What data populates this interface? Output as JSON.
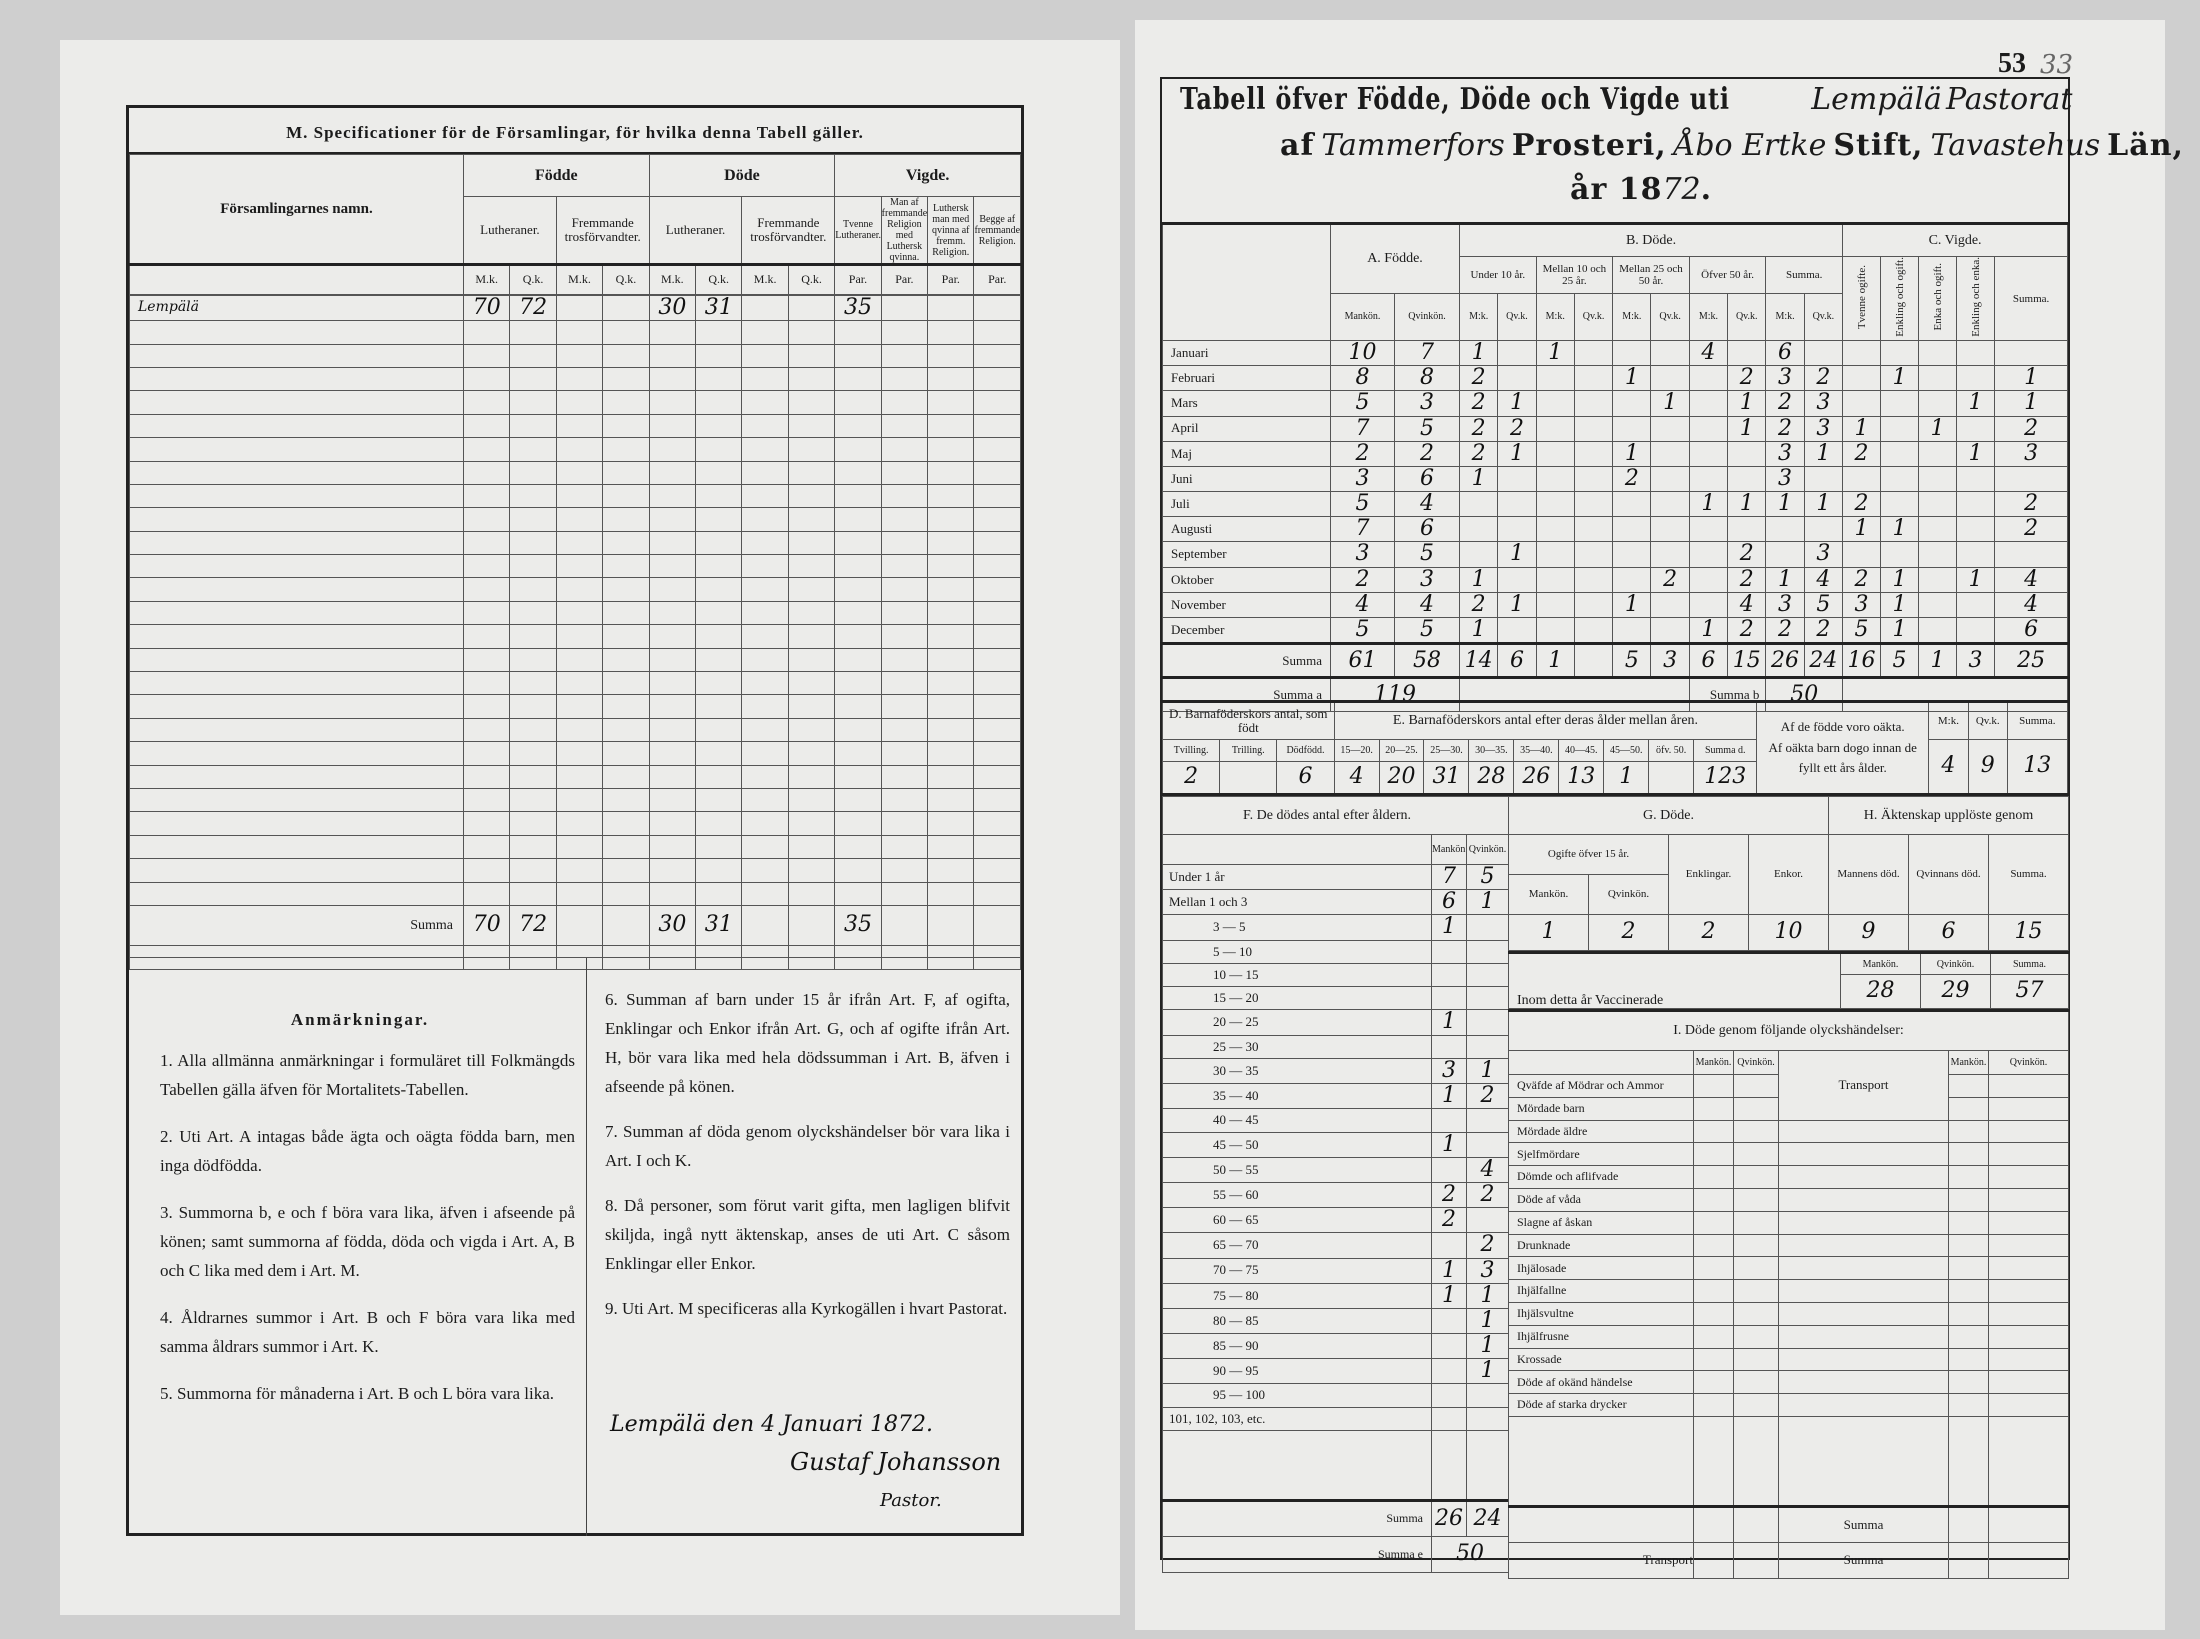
{
  "left_page": {
    "specification": {
      "title": "M. Specificationer för de Församlingar, för hvilka denna Tabell gäller.",
      "name_header": "Församlingarnes namn.",
      "groups": [
        "Födde",
        "Döde",
        "Vigde."
      ],
      "subheaders": [
        "Lutheraner.",
        "Fremmande trosförvandter.",
        "Lutheraner.",
        "Fremmande trosförvandter.",
        "Tvenne Lutheraner.",
        "Man af fremmande Religion med Luthersk qvinna.",
        "Luthersk man med qvinna af fremm. Religion.",
        "Begge af fremmande Religion."
      ],
      "units": [
        "M.k.",
        "Q.k.",
        "M.k.",
        "Q.k.",
        "M.k.",
        "Q.k.",
        "M.k.",
        "Q.k.",
        "Par.",
        "Par.",
        "Par.",
        "Par."
      ],
      "rows": [
        {
          "name": "Lempälä",
          "values": [
            "70",
            "72",
            "",
            "",
            "30",
            "31",
            "",
            "",
            "35",
            "",
            "",
            ""
          ]
        }
      ],
      "summa": {
        "label": "Summa",
        "values": [
          "70",
          "72",
          "",
          "",
          "30",
          "31",
          "",
          "",
          "35",
          "",
          "",
          ""
        ]
      }
    },
    "notes": {
      "heading": "Anmärkningar.",
      "items": [
        "1. Alla allmänna anmärkningar i formuläret till Folkmängds Tabellen gälla äfven för Mortalitets-Tabellen.",
        "2. Uti Art. A intagas både ägta och oägta födda barn, men inga dödfödda.",
        "3. Summorna b, e och f böra vara lika, äfven i afseende på könen; samt summorna af födda, döda och vigda i Art. A, B och C lika med dem i Art. M.",
        "4. Åldrarnes summor i Art. B och F böra vara lika med samma åldrars summor i Art. K.",
        "5. Summorna för månaderna i Art. B och L böra vara lika.",
        "6. Summan af barn under 15 år ifrån Art. F, af ogifta, Enklingar och Enkor ifrån Art. G, och af ogifte ifrån Art. H, bör vara lika med hela dödssumman i Art. B, äfven i afseende på könen.",
        "7. Summan af döda genom olyckshändelser bör vara lika i Art. I och K.",
        "8. Då personer, som förut varit gifta, men lagligen blifvit skiljda, ingå nytt äktenskap, anses de uti Art. C såsom Enklingar eller Enkor.",
        "9. Uti Art. M specificeras alla Kyrkogällen i hvart Pastorat."
      ],
      "signature_place_date": "Lempälä den 4 Januari 1872.",
      "signature_name": "Gustaf Johansson",
      "signature_title": "Pastor."
    }
  },
  "right_page": {
    "page_number": "53",
    "page_number_handwritten": "33",
    "title": {
      "line1_print": "Tabell öfver Födde, Döde och Vigde uti",
      "pastorat": "Lempälä",
      "line1_suffix": "Pastorat",
      "af": "af",
      "prosteri_name": "Tammerfors",
      "prosteri": "Prosteri,",
      "stift_name": "Åbo Ertke",
      "stift": "Stift,",
      "lan_name": "Tavastehus",
      "lan": "Län,",
      "ar": "år 18",
      "year_hw": "72",
      "dot": "."
    },
    "main_table": {
      "section_a": "A. Födde.",
      "section_b": "B. Döde.",
      "section_c": "C. Vigde.",
      "a_cols": [
        "Mankön.",
        "Qvinkön."
      ],
      "b_groups": [
        "Under 10 år.",
        "Mellan 10 och 25 år.",
        "Mellan 25 och 50 år.",
        "Öfver 50 år.",
        "Summa."
      ],
      "mk": "M:k.",
      "qk": "Qv.k.",
      "c_cols": [
        "Tvenne ogifte.",
        "Enkling och ogift.",
        "Enka och ogift.",
        "Enkling och enka.",
        "Summa."
      ],
      "rows": [
        {
          "month": "Januari",
          "values": [
            "10",
            "7",
            "1",
            "",
            "1",
            "",
            "",
            "",
            "4",
            "",
            "6",
            "",
            "",
            "",
            "",
            "",
            ""
          ]
        },
        {
          "month": "Februari",
          "values": [
            "8",
            "8",
            "2",
            "",
            "",
            "",
            "1",
            "",
            "",
            "2",
            "3",
            "2",
            "",
            "1",
            "",
            "",
            "1"
          ]
        },
        {
          "month": "Mars",
          "values": [
            "5",
            "3",
            "2",
            "1",
            "",
            "",
            "",
            "1",
            "",
            "1",
            "2",
            "3",
            "",
            "",
            "",
            "1",
            "1"
          ]
        },
        {
          "month": "April",
          "values": [
            "7",
            "5",
            "2",
            "2",
            "",
            "",
            "",
            "",
            "",
            "1",
            "2",
            "3",
            "1",
            "",
            "1",
            "",
            "2"
          ]
        },
        {
          "month": "Maj",
          "values": [
            "2",
            "2",
            "2",
            "1",
            "",
            "",
            "1",
            "",
            "",
            "",
            "3",
            "1",
            "2",
            "",
            "",
            "1",
            "3"
          ]
        },
        {
          "month": "Juni",
          "values": [
            "3",
            "6",
            "1",
            "",
            "",
            "",
            "2",
            "",
            "",
            "",
            "3",
            "",
            "",
            "",
            "",
            "",
            ""
          ]
        },
        {
          "month": "Juli",
          "values": [
            "5",
            "4",
            "",
            "",
            "",
            "",
            "",
            "",
            "1",
            "1",
            "1",
            "1",
            "2",
            "",
            "",
            "",
            "2"
          ]
        },
        {
          "month": "Augusti",
          "values": [
            "7",
            "6",
            "",
            "",
            "",
            "",
            "",
            "",
            "",
            "",
            "",
            "",
            "1",
            "1",
            "",
            "",
            "2"
          ]
        },
        {
          "month": "September",
          "values": [
            "3",
            "5",
            "",
            "1",
            "",
            "",
            "",
            "",
            "",
            "2",
            "",
            "3",
            "",
            "",
            "",
            "",
            ""
          ]
        },
        {
          "month": "Oktober",
          "values": [
            "2",
            "3",
            "1",
            "",
            "",
            "",
            "",
            "2",
            "",
            "2",
            "1",
            "4",
            "2",
            "1",
            "",
            "1",
            "4"
          ]
        },
        {
          "month": "November",
          "values": [
            "4",
            "4",
            "2",
            "1",
            "",
            "",
            "1",
            "",
            "",
            "4",
            "3",
            "5",
            "3",
            "1",
            "",
            "",
            "4"
          ]
        },
        {
          "month": "December",
          "values": [
            "5",
            "5",
            "1",
            "",
            "",
            "",
            "",
            "",
            "1",
            "2",
            "2",
            "2",
            "5",
            "1",
            "",
            "",
            "6"
          ]
        }
      ],
      "summa": {
        "label": "Summa",
        "values": [
          "61",
          "58",
          "14",
          "6",
          "1",
          "",
          "5",
          "3",
          "6",
          "15",
          "26",
          "24",
          "16",
          "5",
          "1",
          "3",
          "25"
        ]
      },
      "summa_a": {
        "label": "Summa a",
        "value": "119"
      },
      "summa_b": {
        "label": "Summa b",
        "value": "50"
      }
    },
    "section_d": {
      "heading": "D. Barnaföderskors antal, som födt",
      "cols": [
        "Tvilling.",
        "Trilling.",
        "Dödfödd."
      ],
      "values": [
        "2",
        "",
        "6"
      ]
    },
    "section_e": {
      "heading": "E. Barnaföderskors antal efter deras ålder mellan åren.",
      "cols": [
        "15—20.",
        "20—25.",
        "25—30.",
        "30—35.",
        "35—40.",
        "40—45.",
        "45—50.",
        "öfv. 50.",
        "Summa d."
      ],
      "values": [
        "4",
        "20",
        "31",
        "28",
        "26",
        "13",
        "1",
        "",
        "123"
      ]
    },
    "illegitimate": {
      "cols": [
        "M:k.",
        "Qv.k.",
        "Summa."
      ],
      "row1_label": "Af de födde voro oäkta.",
      "row1_values": [
        "4",
        "9",
        "13"
      ],
      "row2_label": "Af oäkta barn dogo innan de fyllt ett års ålder."
    },
    "section_f": {
      "heading": "F. De dödes antal efter åldern.",
      "cols": [
        "Mankön.",
        "Qvinkön."
      ],
      "rows": [
        {
          "age": "Under 1 år",
          "m": "7",
          "q": "5"
        },
        {
          "age": "Mellan 1 och 3",
          "m": "6",
          "q": "1"
        },
        {
          "age": "3 — 5",
          "m": "1",
          "q": ""
        },
        {
          "age": "5 — 10",
          "m": "",
          "q": ""
        },
        {
          "age": "10 — 15",
          "m": "",
          "q": ""
        },
        {
          "age": "15 — 20",
          "m": "",
          "q": ""
        },
        {
          "age": "20 — 25",
          "m": "1",
          "q": ""
        },
        {
          "age": "25 — 30",
          "m": "",
          "q": ""
        },
        {
          "age": "30 — 35",
          "m": "3",
          "q": "1"
        },
        {
          "age": "35 — 40",
          "m": "1",
          "q": "2"
        },
        {
          "age": "40 — 45",
          "m": "",
          "q": ""
        },
        {
          "age": "45 — 50",
          "m": "1",
          "q": ""
        },
        {
          "age": "50 — 55",
          "m": "",
          "q": "4"
        },
        {
          "age": "55 — 60",
          "m": "2",
          "q": "2"
        },
        {
          "age": "60 — 65",
          "m": "2",
          "q": ""
        },
        {
          "age": "65 — 70",
          "m": "",
          "q": "2"
        },
        {
          "age": "70 — 75",
          "m": "1",
          "q": "3"
        },
        {
          "age": "75 — 80",
          "m": "1",
          "q": "1"
        },
        {
          "age": "80 — 85",
          "m": "",
          "q": "1"
        },
        {
          "age": "85 — 90",
          "m": "",
          "q": "1"
        },
        {
          "age": "90 — 95",
          "m": "",
          "q": "1"
        },
        {
          "age": "95 — 100",
          "m": "",
          "q": ""
        },
        {
          "age": "101, 102, 103, etc.",
          "m": "",
          "q": ""
        }
      ],
      "summa": {
        "label": "Summa",
        "m": "26",
        "q": "24"
      },
      "summa_e": {
        "label": "Summa e",
        "value": "50"
      }
    },
    "section_g": {
      "heading": "G. Döde.",
      "ogifte": "Ogifte öfver 15 år.",
      "cols": [
        "Mankön.",
        "Qvinkön.",
        "Enklingar.",
        "Enkor."
      ],
      "values": [
        "1",
        "2",
        "2",
        "10"
      ]
    },
    "section_h": {
      "heading": "H. Äktenskap upplöste genom",
      "cols": [
        "Mannens död.",
        "Qvinnans död.",
        "Summa."
      ],
      "values": [
        "9",
        "6",
        "15"
      ]
    },
    "vaccinated": {
      "label": "Inom detta år Vaccinerade",
      "cols": [
        "Mankön.",
        "Qvinkön.",
        "Summa."
      ],
      "values": [
        "28",
        "29",
        "57"
      ]
    },
    "section_i": {
      "heading": "I. Döde genom följande olyckshändelser:",
      "cols": [
        "Mankön.",
        "Qvinkön."
      ],
      "items": [
        "Qväfde af Mödrar och Ammor",
        "Mördade barn",
        "Mördade äldre",
        "Sjelfmördare",
        "Dömde och aflifvade",
        "Döde af våda",
        "Slagne af åskan",
        "Drunknade",
        "Ihjälosade",
        "Ihjälfallne",
        "Ihjälsvultne",
        "Ihjälfrusne",
        "Krossade",
        "Döde af okänd händelse",
        "Döde af starka drycker"
      ],
      "transport": "Transport",
      "summa": "Summa"
    }
  }
}
